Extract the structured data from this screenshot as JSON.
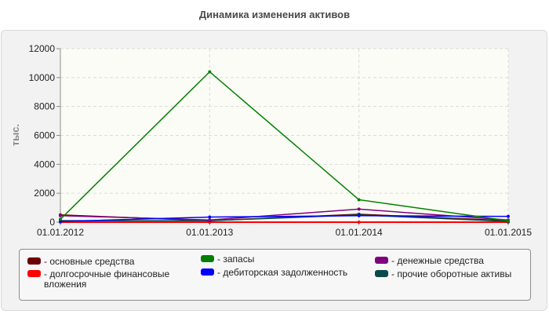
{
  "chart_data": {
    "type": "line",
    "title": "Динамика изменения активов",
    "ylabel": "тыс.",
    "xlabel": "",
    "x": [
      "01.01.2012",
      "01.01.2013",
      "01.01.2014",
      "01.01.2015"
    ],
    "ylim": [
      0,
      12000
    ],
    "yticks": [
      0,
      2000,
      4000,
      6000,
      8000,
      10000,
      12000
    ],
    "grid": true,
    "legend_position": "bottom",
    "series": [
      {
        "name": "основные средства",
        "color": "#6b0000",
        "values": [
          500,
          100,
          550,
          100
        ]
      },
      {
        "name": "долгосрочные финансовые вложения",
        "color": "#ff0000",
        "values": [
          0,
          0,
          0,
          0
        ]
      },
      {
        "name": "запасы",
        "color": "#008000",
        "values": [
          200,
          10400,
          1550,
          100
        ]
      },
      {
        "name": "дебиторская задолженность",
        "color": "#0000ff",
        "values": [
          50,
          350,
          450,
          400
        ]
      },
      {
        "name": "денежные средства",
        "color": "#800080",
        "values": [
          450,
          150,
          900,
          150
        ]
      },
      {
        "name": "прочие оборотные активы",
        "color": "#0b4a4a",
        "values": [
          100,
          100,
          500,
          50
        ]
      }
    ]
  }
}
